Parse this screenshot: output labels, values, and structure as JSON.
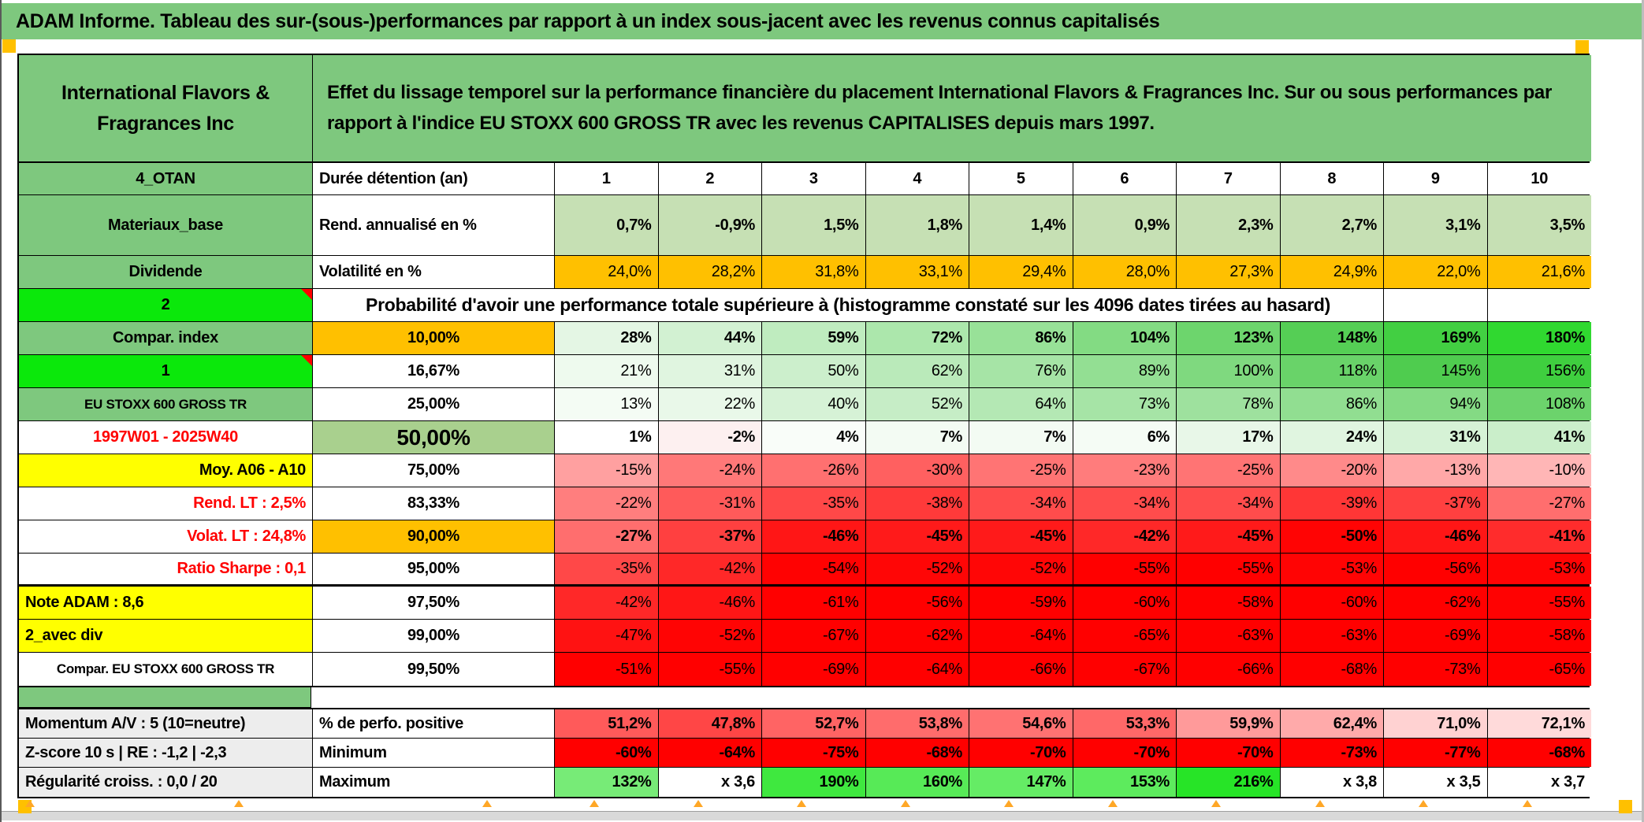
{
  "title": "ADAM Informe. Tableau des sur-(sous-)performances par rapport à un index sous-jacent avec les revenus connus capitalisés",
  "header": {
    "company": "International Flavors & Fragrances Inc",
    "description": "Effet du lissage temporel sur la performance financière du placement International Flavors & Fragrances Inc. Sur ou sous performances par rapport à l'indice EU STOXX 600 GROSS TR avec les revenus CAPITALISES depuis mars 1997."
  },
  "colors": {
    "title_bar_green": "#7EC87E",
    "label_green": "#7EC87E",
    "bright_green": "#0BE80B",
    "accent_orange": "#FFC000",
    "accent_yellow": "#FFFF00",
    "sage_green": "#A9D08E",
    "deep_red": "#FF0000",
    "gray_label": "#EDEDED"
  },
  "table": {
    "rows": [
      {
        "h": 41,
        "label": {
          "text": "4_OTAN",
          "bg": "#7EC87E",
          "align": "center"
        },
        "col2": {
          "text": "Durée détention (an)",
          "align": "left"
        },
        "values": [
          "1",
          "2",
          "3",
          "4",
          "5",
          "6",
          "7",
          "8",
          "9",
          "10"
        ],
        "valuesBold": true,
        "valuesAlign": "center",
        "bgs": [
          "#FFFFFF",
          "#FFFFFF",
          "#FFFFFF",
          "#FFFFFF",
          "#FFFFFF",
          "#FFFFFF",
          "#FFFFFF",
          "#FFFFFF",
          "#FFFFFF",
          "#FFFFFF"
        ]
      },
      {
        "h": 77,
        "label": {
          "text": "Materiaux_base",
          "bg": "#7EC87E",
          "align": "center"
        },
        "col2": {
          "text": "Rend. annualisé en %",
          "align": "left"
        },
        "values": [
          "0,7%",
          "-0,9%",
          "1,5%",
          "1,8%",
          "1,4%",
          "0,9%",
          "2,3%",
          "2,7%",
          "3,1%",
          "3,5%"
        ],
        "valuesBold": true,
        "bgs": [
          "#C6E0B4",
          "#C6E0B4",
          "#C6E0B4",
          "#C6E0B4",
          "#C6E0B4",
          "#C6E0B4",
          "#C6E0B4",
          "#C6E0B4",
          "#C6E0B4",
          "#C6E0B4"
        ]
      },
      {
        "label": {
          "text": "Dividende",
          "bg": "#7EC87E",
          "align": "center"
        },
        "col2": {
          "text": "Volatilité en %",
          "align": "left"
        },
        "values": [
          "24,0%",
          "28,2%",
          "31,8%",
          "33,1%",
          "29,4%",
          "28,0%",
          "27,3%",
          "24,9%",
          "22,0%",
          "21,6%"
        ],
        "valuesBold": false,
        "bgs": [
          "#FFC000",
          "#FFC000",
          "#FFC000",
          "#FFC000",
          "#FFC000",
          "#FFC000",
          "#FFC000",
          "#FFC000",
          "#FFC000",
          "#FFC000"
        ]
      },
      {
        "type": "probability",
        "label": {
          "text": "2",
          "bg": "#0BE80B",
          "align": "center",
          "triangle": true
        },
        "text": "Probabilité d'avoir une performance totale supérieure à (histogramme constaté sur les 4096 dates tirées au hasard)"
      },
      {
        "label": {
          "text": "Compar. index",
          "bg": "#7EC87E",
          "align": "center"
        },
        "col2": {
          "text": "10,00%",
          "bg": "#FFC000",
          "align": "center"
        },
        "values": [
          "28%",
          "44%",
          "59%",
          "72%",
          "86%",
          "104%",
          "123%",
          "148%",
          "169%",
          "180%"
        ],
        "valuesBold": true,
        "bgs": [
          "#E4F6E4",
          "#D2F1D2",
          "#BFECBF",
          "#ACE7AC",
          "#98E198",
          "#83DB83",
          "#6DD56D",
          "#55CE55",
          "#42CF42",
          "#30D830"
        ]
      },
      {
        "label": {
          "text": "1",
          "bg": "#0BE80B",
          "align": "center",
          "triangle": true
        },
        "col2": {
          "text": "16,67%",
          "align": "center"
        },
        "values": [
          "21%",
          "31%",
          "50%",
          "62%",
          "76%",
          "89%",
          "100%",
          "118%",
          "145%",
          "156%"
        ],
        "valuesBold": false,
        "bgs": [
          "#EEFAEE",
          "#E0F5E0",
          "#CCEFCC",
          "#BAEABA",
          "#A6E4A6",
          "#93DF93",
          "#7FD97F",
          "#69D369",
          "#4FCC4F",
          "#3FCF3F"
        ]
      },
      {
        "label": {
          "text": "EU STOXX 600 GROSS TR",
          "bg": "#7EC87E",
          "align": "center",
          "size": 17
        },
        "col2": {
          "text": "25,00%",
          "align": "center"
        },
        "values": [
          "13%",
          "22%",
          "40%",
          "52%",
          "64%",
          "73%",
          "78%",
          "86%",
          "94%",
          "108%"
        ],
        "valuesBold": false,
        "bgs": [
          "#F4FCF4",
          "#E9F8E9",
          "#D6F2D6",
          "#C6EDC6",
          "#B4E8B4",
          "#A6E4A6",
          "#9EE19E",
          "#91DE91",
          "#84DA84",
          "#6CD36C"
        ]
      },
      {
        "label": {
          "text": "1997W01 - 2025W40",
          "color": "#FF0000",
          "align": "center"
        },
        "col2": {
          "text": "50,00%",
          "bg": "#A9D08E",
          "align": "center",
          "size": 28
        },
        "values": [
          "1%",
          "-2%",
          "4%",
          "7%",
          "7%",
          "6%",
          "17%",
          "24%",
          "31%",
          "41%"
        ],
        "valuesBold": true,
        "bgs": [
          "#FFFFFF",
          "#FDF0F0",
          "#F9FDF9",
          "#F3FBF3",
          "#F3FBF3",
          "#F5FCF5",
          "#E8F7E8",
          "#E0F5E0",
          "#D6F2D6",
          "#CAEECA"
        ]
      },
      {
        "label": {
          "text": "Moy. A06 - A10",
          "bg": "#FFFF00",
          "align": "right"
        },
        "col2": {
          "text": "75,00%",
          "align": "center"
        },
        "values": [
          "-15%",
          "-24%",
          "-26%",
          "-30%",
          "-25%",
          "-23%",
          "-25%",
          "-20%",
          "-13%",
          "-10%"
        ],
        "valuesBold": false,
        "bgs": [
          "#FFA0A0",
          "#FF7878",
          "#FF7070",
          "#FF6060",
          "#FF7474",
          "#FF7C7C",
          "#FF7474",
          "#FF8A8A",
          "#FFA8A8",
          "#FFB6B6"
        ]
      },
      {
        "label": {
          "text": "Rend. LT :   2,5%",
          "color": "#FF0000",
          "align": "right"
        },
        "col2": {
          "text": "83,33%",
          "align": "center"
        },
        "values": [
          "-22%",
          "-31%",
          "-35%",
          "-38%",
          "-34%",
          "-34%",
          "-34%",
          "-39%",
          "-37%",
          "-27%"
        ],
        "valuesBold": false,
        "bgs": [
          "#FF7E7E",
          "#FF5A5A",
          "#FF4848",
          "#FF3A3A",
          "#FF4C4C",
          "#FF4C4C",
          "#FF4C4C",
          "#FF3636",
          "#FF4040",
          "#FF6E6E"
        ]
      },
      {
        "label": {
          "text": "Volat. LT :   24,8%",
          "color": "#FF0000",
          "align": "right"
        },
        "col2": {
          "text": "90,00%",
          "bg": "#FFC000",
          "align": "center"
        },
        "values": [
          "-27%",
          "-37%",
          "-46%",
          "-45%",
          "-45%",
          "-42%",
          "-45%",
          "-50%",
          "-46%",
          "-41%"
        ],
        "valuesBold": true,
        "bgs": [
          "#FF6E6E",
          "#FF4040",
          "#FF1616",
          "#FF1A1A",
          "#FF1A1A",
          "#FF2828",
          "#FF1A1A",
          "#FF0404",
          "#FF1616",
          "#FF2C2C"
        ]
      },
      {
        "thick": true,
        "label": {
          "text": "Ratio Sharpe :   0,1",
          "color": "#FF0000",
          "align": "right"
        },
        "col2": {
          "text": "95,00%",
          "align": "center"
        },
        "values": [
          "-35%",
          "-42%",
          "-54%",
          "-52%",
          "-52%",
          "-55%",
          "-55%",
          "-53%",
          "-56%",
          "-53%"
        ],
        "valuesBold": false,
        "bgs": [
          "#FF4848",
          "#FF2828",
          "#FF0202",
          "#FF0606",
          "#FF0606",
          "#FF0000",
          "#FF0000",
          "#FF0404",
          "#FF0000",
          "#FF0404"
        ]
      },
      {
        "label": {
          "text": "Note ADAM : 8,6",
          "bg": "#FFFF00",
          "align": "left"
        },
        "col2": {
          "text": "97,50%",
          "align": "center"
        },
        "values": [
          "-42%",
          "-46%",
          "-61%",
          "-56%",
          "-59%",
          "-60%",
          "-58%",
          "-60%",
          "-62%",
          "-55%"
        ],
        "valuesBold": false,
        "bgs": [
          "#FF2828",
          "#FF1616",
          "#FF0000",
          "#FF0000",
          "#FF0000",
          "#FF0000",
          "#FF0000",
          "#FF0000",
          "#FF0000",
          "#FF0202"
        ]
      },
      {
        "label": {
          "text": "2_avec div",
          "bg": "#FFFF00",
          "align": "left"
        },
        "col2": {
          "text": "99,00%",
          "align": "center"
        },
        "values": [
          "-47%",
          "-52%",
          "-67%",
          "-62%",
          "-64%",
          "-65%",
          "-63%",
          "-63%",
          "-69%",
          "-58%"
        ],
        "valuesBold": false,
        "bgs": [
          "#FF1212",
          "#FF0404",
          "#FF0000",
          "#FF0000",
          "#FF0000",
          "#FF0000",
          "#FF0000",
          "#FF0000",
          "#FF0000",
          "#FF0000"
        ]
      },
      {
        "label": {
          "text": "Compar. EU STOXX 600 GROSS TR",
          "align": "center",
          "size": 17
        },
        "col2": {
          "text": "99,50%",
          "align": "center"
        },
        "values": [
          "-51%",
          "-55%",
          "-69%",
          "-64%",
          "-66%",
          "-67%",
          "-66%",
          "-68%",
          "-73%",
          "-65%"
        ],
        "valuesBold": false,
        "bgs": [
          "#FF0000",
          "#FF0000",
          "#FF0000",
          "#FF0000",
          "#FF0000",
          "#FF0000",
          "#FF0000",
          "#FF0000",
          "#FF0000",
          "#FF0000"
        ]
      }
    ],
    "bottom_rows": [
      {
        "label": {
          "text": "Momentum A/V : 5 (10=neutre)",
          "bg": "#EDEDED",
          "align": "left"
        },
        "col2": {
          "text": "% de perfo. positive",
          "align": "left"
        },
        "values": [
          "51,2%",
          "47,8%",
          "52,7%",
          "53,8%",
          "54,6%",
          "53,3%",
          "59,9%",
          "62,4%",
          "71,0%",
          "72,1%"
        ],
        "valuesBold": true,
        "bgs": [
          "#FF5A5A",
          "#FF4646",
          "#FF6464",
          "#FF6C6C",
          "#FF7272",
          "#FF6868",
          "#FF9A9A",
          "#FFAAAA",
          "#FFD2D2",
          "#FFDADA"
        ]
      },
      {
        "label": {
          "text": "Z-score 10 s | RE : -1,2 | -2,3",
          "bg": "#EDEDED",
          "align": "left"
        },
        "col2": {
          "text": "Minimum",
          "align": "left"
        },
        "values": [
          "-60%",
          "-64%",
          "-75%",
          "-68%",
          "-70%",
          "-70%",
          "-70%",
          "-73%",
          "-77%",
          "-68%"
        ],
        "valuesBold": true,
        "bgs": [
          "#FF0000",
          "#FF0000",
          "#FF0000",
          "#FF0000",
          "#FF0000",
          "#FF0000",
          "#FF0000",
          "#FF0000",
          "#FF0000",
          "#FF0000"
        ]
      },
      {
        "label": {
          "text": "Régularité croiss. : 0,0 / 20",
          "bg": "#EDEDED",
          "align": "left"
        },
        "col2": {
          "text": "Maximum",
          "align": "left"
        },
        "values": [
          "132%",
          "x 3,6",
          "190%",
          "160%",
          "147%",
          "153%",
          "216%",
          "x 3,8",
          "x 3,5",
          "x 3,7"
        ],
        "valuesBold": true,
        "bgs": [
          "#77EB77",
          "#FFFFFF",
          "#3FE83F",
          "#57EA57",
          "#65EC65",
          "#5DEB5D",
          "#27E427",
          "#FFFFFF",
          "#FFFFFF",
          "#FFFFFF"
        ]
      }
    ]
  }
}
